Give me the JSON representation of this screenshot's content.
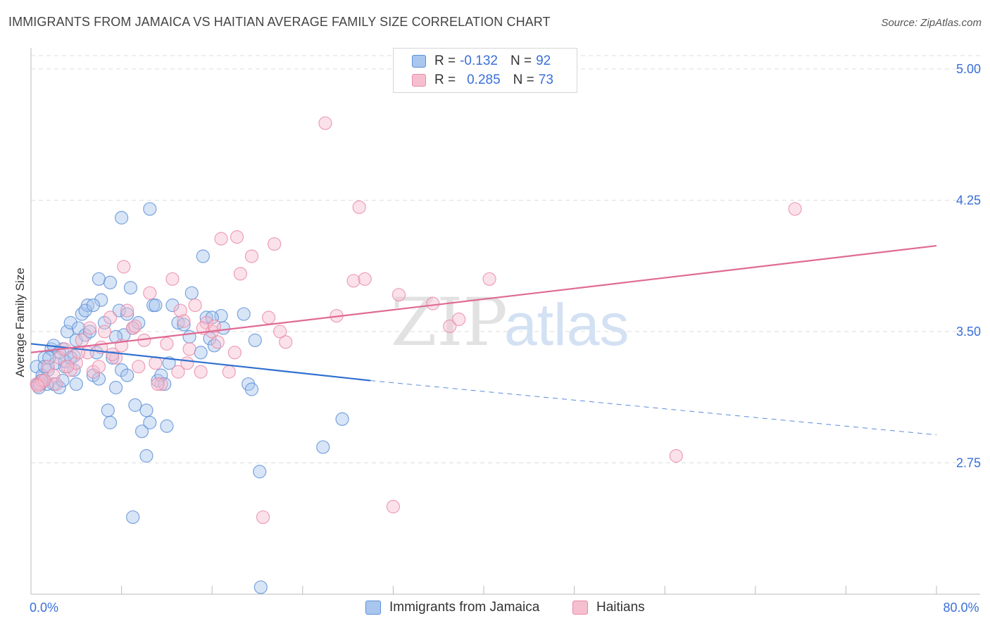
{
  "header": {
    "title": "IMMIGRANTS FROM JAMAICA VS HAITIAN AVERAGE FAMILY SIZE CORRELATION CHART",
    "source": "Source: ZipAtlas.com"
  },
  "watermark": {
    "zip": "ZIP",
    "atlas": "atlas"
  },
  "legend": {
    "rows": [
      {
        "r_label": "R =",
        "r_value": "-0.132",
        "n_label": "N =",
        "n_value": "92"
      },
      {
        "r_label": "R =",
        "r_value": "0.285",
        "n_label": "N =",
        "n_value": "73"
      }
    ]
  },
  "bottom_legend": {
    "jamaica": "Immigrants from Jamaica",
    "haitians": "Haitians"
  },
  "colors": {
    "jamaica_fill": "#a9c6ee",
    "jamaica_stroke": "#5b8fd6",
    "jamaica_line": "#2f6fd0",
    "haitian_fill": "#f6bfd0",
    "haitian_stroke": "#e98aa8",
    "haitian_line": "#e06a94",
    "axis_text": "#3a6fd8",
    "grid": "#dddddd"
  },
  "chart_data": {
    "type": "scatter",
    "title": "IMMIGRANTS FROM JAMAICA VS HAITIAN AVERAGE FAMILY SIZE CORRELATION CHART",
    "ylabel": "Average Family Size",
    "xlim": [
      0,
      80
    ],
    "ylim": [
      2.0,
      5.12
    ],
    "x_tick_labels": [
      {
        "value": 0,
        "label": "0.0%"
      },
      {
        "value": 80,
        "label": "80.0%"
      }
    ],
    "y_ticks": [
      {
        "value": 2.75,
        "label": "2.75"
      },
      {
        "value": 3.5,
        "label": "3.50"
      },
      {
        "value": 4.25,
        "label": "4.25"
      },
      {
        "value": 5.0,
        "label": "5.00"
      }
    ],
    "series": [
      {
        "name": "Immigrants from Jamaica",
        "trend": {
          "x0": 0,
          "y0": 3.43,
          "x1": 30,
          "y1": 3.22,
          "dash_to_x": 80,
          "dash_to_y": 2.91
        },
        "points": [
          [
            0.5,
            3.3
          ],
          [
            0.8,
            3.2
          ],
          [
            1.0,
            3.25
          ],
          [
            1.2,
            3.35
          ],
          [
            1.5,
            3.28
          ],
          [
            1.8,
            3.4
          ],
          [
            2.0,
            3.2
          ],
          [
            2.2,
            3.32
          ],
          [
            2.5,
            3.18
          ],
          [
            2.8,
            3.4
          ],
          [
            3.0,
            3.3
          ],
          [
            3.2,
            3.5
          ],
          [
            3.5,
            3.55
          ],
          [
            3.8,
            3.36
          ],
          [
            4.0,
            3.45
          ],
          [
            4.2,
            3.52
          ],
          [
            4.5,
            3.6
          ],
          [
            4.8,
            3.48
          ],
          [
            5.0,
            3.65
          ],
          [
            5.2,
            3.5
          ],
          [
            5.5,
            3.25
          ],
          [
            5.8,
            3.38
          ],
          [
            6.0,
            3.8
          ],
          [
            6.2,
            3.68
          ],
          [
            6.5,
            3.55
          ],
          [
            6.8,
            3.05
          ],
          [
            7.0,
            3.78
          ],
          [
            7.2,
            3.35
          ],
          [
            7.5,
            3.18
          ],
          [
            7.8,
            3.62
          ],
          [
            8.0,
            3.28
          ],
          [
            8.2,
            3.48
          ],
          [
            8.5,
            3.25
          ],
          [
            8.8,
            3.75
          ],
          [
            9.0,
            3.52
          ],
          [
            9.2,
            3.08
          ],
          [
            9.5,
            3.55
          ],
          [
            9.8,
            2.93
          ],
          [
            10.2,
            3.05
          ],
          [
            10.5,
            4.2
          ],
          [
            10.8,
            3.65
          ],
          [
            11.2,
            3.22
          ],
          [
            11.5,
            3.25
          ],
          [
            11.8,
            3.2
          ],
          [
            12.0,
            2.96
          ],
          [
            12.2,
            3.32
          ],
          [
            13.0,
            3.55
          ],
          [
            14.0,
            3.47
          ],
          [
            14.2,
            3.72
          ],
          [
            15.0,
            3.38
          ],
          [
            15.2,
            3.93
          ],
          [
            15.5,
            3.58
          ],
          [
            15.8,
            3.46
          ],
          [
            16.2,
            3.42
          ],
          [
            16.8,
            3.59
          ],
          [
            17.0,
            3.52
          ],
          [
            18.8,
            3.6
          ],
          [
            19.2,
            3.2
          ],
          [
            19.5,
            3.17
          ],
          [
            19.8,
            3.45
          ],
          [
            20.2,
            2.7
          ],
          [
            20.3,
            2.04
          ],
          [
            25.8,
            2.84
          ],
          [
            27.5,
            3.0
          ],
          [
            8.0,
            4.15
          ],
          [
            1.2,
            3.3
          ],
          [
            2.0,
            3.42
          ],
          [
            3.0,
            3.33
          ],
          [
            3.5,
            3.35
          ],
          [
            4.8,
            3.62
          ],
          [
            6.0,
            3.23
          ],
          [
            8.5,
            3.6
          ],
          [
            10.2,
            2.79
          ],
          [
            10.5,
            2.98
          ],
          [
            9.0,
            2.44
          ],
          [
            7.0,
            2.98
          ],
          [
            2.5,
            3.38
          ],
          [
            4.0,
            3.2
          ],
          [
            1.0,
            3.21
          ],
          [
            0.6,
            3.2
          ],
          [
            1.4,
            3.2
          ],
          [
            12.5,
            3.65
          ],
          [
            0.9,
            3.22
          ],
          [
            1.6,
            3.35
          ],
          [
            2.8,
            3.22
          ],
          [
            5.5,
            3.65
          ],
          [
            7.5,
            3.47
          ],
          [
            11.0,
            3.65
          ],
          [
            13.5,
            3.54
          ],
          [
            16.0,
            3.58
          ],
          [
            0.7,
            3.18
          ],
          [
            3.8,
            3.28
          ]
        ]
      },
      {
        "name": "Haitians",
        "trend": {
          "x0": 0,
          "y0": 3.38,
          "x1": 80,
          "y1": 3.99
        },
        "points": [
          [
            0.5,
            3.2
          ],
          [
            1.0,
            3.22
          ],
          [
            1.5,
            3.3
          ],
          [
            2.0,
            3.25
          ],
          [
            2.5,
            3.35
          ],
          [
            3.0,
            3.4
          ],
          [
            3.5,
            3.28
          ],
          [
            4.0,
            3.32
          ],
          [
            4.5,
            3.45
          ],
          [
            5.0,
            3.38
          ],
          [
            5.5,
            3.27
          ],
          [
            6.0,
            3.3
          ],
          [
            6.5,
            3.5
          ],
          [
            7.0,
            3.58
          ],
          [
            7.5,
            3.35
          ],
          [
            8.0,
            3.42
          ],
          [
            8.2,
            3.87
          ],
          [
            8.5,
            3.62
          ],
          [
            9.0,
            3.52
          ],
          [
            9.5,
            3.3
          ],
          [
            10.0,
            3.45
          ],
          [
            10.5,
            3.72
          ],
          [
            11.0,
            3.32
          ],
          [
            11.5,
            3.2
          ],
          [
            12.0,
            3.43
          ],
          [
            12.5,
            3.8
          ],
          [
            13.0,
            3.27
          ],
          [
            13.2,
            3.62
          ],
          [
            13.5,
            3.56
          ],
          [
            14.0,
            3.4
          ],
          [
            14.5,
            3.65
          ],
          [
            15.0,
            3.27
          ],
          [
            15.5,
            3.55
          ],
          [
            16.0,
            3.5
          ],
          [
            16.5,
            3.44
          ],
          [
            16.8,
            4.03
          ],
          [
            17.5,
            3.27
          ],
          [
            18.0,
            3.38
          ],
          [
            18.2,
            4.04
          ],
          [
            18.5,
            3.83
          ],
          [
            19.5,
            3.93
          ],
          [
            20.5,
            2.44
          ],
          [
            21.0,
            3.58
          ],
          [
            21.5,
            4.0
          ],
          [
            22.0,
            3.5
          ],
          [
            22.5,
            3.44
          ],
          [
            26.0,
            4.69
          ],
          [
            27.0,
            3.59
          ],
          [
            28.5,
            3.79
          ],
          [
            29.5,
            3.8
          ],
          [
            29.0,
            4.21
          ],
          [
            32.0,
            2.5
          ],
          [
            32.5,
            3.71
          ],
          [
            35.5,
            3.66
          ],
          [
            37.0,
            3.53
          ],
          [
            37.8,
            3.57
          ],
          [
            40.5,
            3.8
          ],
          [
            57.0,
            2.79
          ],
          [
            67.5,
            4.2
          ],
          [
            0.8,
            3.2
          ],
          [
            1.2,
            3.22
          ],
          [
            2.2,
            3.2
          ],
          [
            3.2,
            3.3
          ],
          [
            4.2,
            3.38
          ],
          [
            5.2,
            3.52
          ],
          [
            6.2,
            3.41
          ],
          [
            7.2,
            3.37
          ],
          [
            9.2,
            3.53
          ],
          [
            11.2,
            3.2
          ],
          [
            13.8,
            3.32
          ],
          [
            15.2,
            3.52
          ],
          [
            16.2,
            3.53
          ],
          [
            0.6,
            3.19
          ]
        ]
      }
    ]
  }
}
